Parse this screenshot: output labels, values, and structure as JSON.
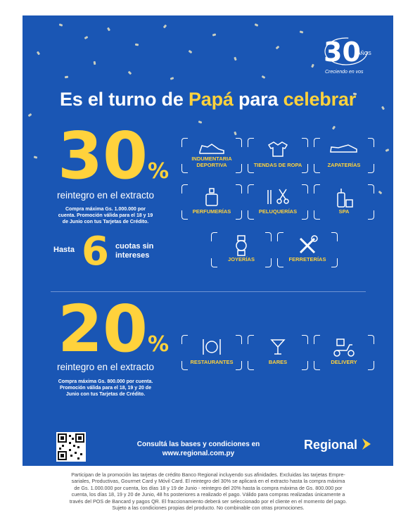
{
  "logo": {
    "number": "30",
    "years": "AÑOS",
    "tagline": "Creciendo en vos"
  },
  "headline": {
    "part1": "Es el turno de ",
    "highlight1": "Papá",
    "part2": " para ",
    "highlight2": "celebrar"
  },
  "offer30": {
    "value": "30",
    "pct": "%",
    "label": "reintegro en el extracto",
    "terms": [
      "Compra máxima Gs. 1.000.000 por",
      "cuenta. Promoción válida para el 18 y 19",
      "de Junio con tus Tarjetas de Crédito."
    ],
    "installments_prefix": "Hasta",
    "installments_number": "6",
    "installments_suffix": [
      "cuotas sin",
      "intereses"
    ]
  },
  "offer20": {
    "value": "20",
    "pct": "%",
    "label": "reintegro en el extracto",
    "terms": [
      "Compra máxima Gs. 800.000 por cuenta.",
      "Promoción válida para el 18, 19 y 20 de",
      "Junio con tus Tarjetas de Crédito."
    ]
  },
  "categories30": [
    {
      "label": "INDUMENTARIA DEPORTIVA",
      "icon": "sneaker-icon"
    },
    {
      "label": "TIENDAS DE ROPA",
      "icon": "shirt-icon"
    },
    {
      "label": "ZAPATERÍAS",
      "icon": "shoe-icon"
    },
    {
      "label": "PERFUMERÍAS",
      "icon": "perfume-icon"
    },
    {
      "label": "PELUQUERÍAS",
      "icon": "scissors-icon"
    },
    {
      "label": "SPA",
      "icon": "spa-bottles-icon"
    },
    {
      "label": "JOYERÍAS",
      "icon": "watch-icon"
    },
    {
      "label": "FERRETERÍAS",
      "icon": "tools-icon"
    }
  ],
  "categories20": [
    {
      "label": "RESTAURANTES",
      "icon": "cutlery-icon"
    },
    {
      "label": "BARES",
      "icon": "cocktail-icon"
    },
    {
      "label": "DELIVERY",
      "icon": "delivery-scooter-icon"
    }
  ],
  "footer": {
    "consult_line1": "Consultá las bases y condiciones en",
    "consult_line2": "www.regional.com.py",
    "brand": "Regional",
    "qr_icon": "qr-code-icon"
  },
  "legal": [
    "Participan de la promoción las tarjetas de crédito Banco Regional incluyendo sus afinidades. Excluidas las tarjetas Empre-",
    "sariales, Productivas, Gourmet Card y Móvil Card. El reintegro del 30% se aplicará en el extracto hasta la compra máxima",
    "de Gs. 1.000.000 por cuenta, los días 18 y 19 de Junio - reintegro del 20% hasta la compra máxima de Gs. 800.000 por",
    "cuenta, los días 18, 19 y 20 de Junio, 48 hs posteriores a realizado el pago. Válido para compras realizadas únicamente a",
    "través del POS de Bancard y pagos QR. El fraccionamiento deberá ser seleccionado por el cliente en el momento del pago.",
    "Sujeto a las condiciones propias del producto. No combinable con otras promociones."
  ],
  "colors": {
    "background": "#1a56b4",
    "accent": "#ffd23c",
    "white": "#ffffff"
  }
}
